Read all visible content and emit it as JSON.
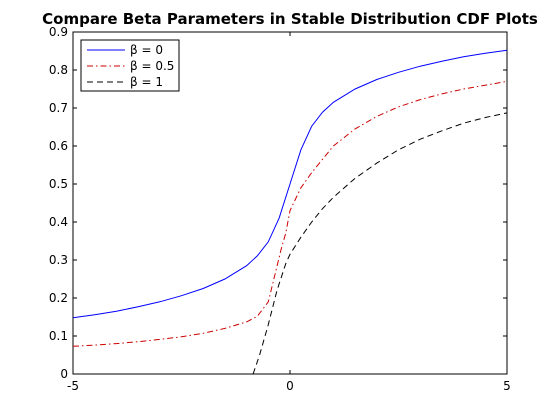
{
  "chart_data": {
    "type": "line",
    "title": "Compare Beta Parameters in Stable Distribution CDF Plots",
    "xlabel": "",
    "ylabel": "",
    "xlim": [
      -5,
      5
    ],
    "ylim": [
      0,
      0.9
    ],
    "x_ticks": [
      -5,
      0,
      5
    ],
    "y_ticks": [
      0,
      0.1,
      0.2,
      0.3,
      0.4,
      0.5,
      0.6,
      0.7,
      0.8,
      0.9
    ],
    "grid": false,
    "legend_position": "top-left",
    "series": [
      {
        "name": "β = 0",
        "color": "#0000ff",
        "dash": "solid",
        "points": [
          [
            -5,
            0.148
          ],
          [
            -4.5,
            0.156
          ],
          [
            -4,
            0.165
          ],
          [
            -3.5,
            0.177
          ],
          [
            -3,
            0.19
          ],
          [
            -2.5,
            0.206
          ],
          [
            -2,
            0.225
          ],
          [
            -1.5,
            0.25
          ],
          [
            -1,
            0.285
          ],
          [
            -0.75,
            0.311
          ],
          [
            -0.5,
            0.348
          ],
          [
            -0.25,
            0.41
          ],
          [
            0,
            0.5
          ],
          [
            0.25,
            0.59
          ],
          [
            0.5,
            0.652
          ],
          [
            0.75,
            0.689
          ],
          [
            1,
            0.715
          ],
          [
            1.5,
            0.75
          ],
          [
            2,
            0.775
          ],
          [
            2.5,
            0.794
          ],
          [
            3,
            0.81
          ],
          [
            3.5,
            0.823
          ],
          [
            4,
            0.835
          ],
          [
            4.5,
            0.844
          ],
          [
            5,
            0.852
          ]
        ]
      },
      {
        "name": "β = 0.5",
        "color": "#cc0000",
        "dash": "dashdot",
        "points": [
          [
            -5,
            0.073
          ],
          [
            -4.5,
            0.076
          ],
          [
            -4,
            0.08
          ],
          [
            -3.5,
            0.085
          ],
          [
            -3,
            0.091
          ],
          [
            -2.5,
            0.098
          ],
          [
            -2,
            0.107
          ],
          [
            -1.5,
            0.12
          ],
          [
            -1,
            0.137
          ],
          [
            -0.75,
            0.152
          ],
          [
            -0.5,
            0.19
          ],
          [
            -0.35,
            0.26
          ],
          [
            -0.2,
            0.33
          ],
          [
            -0.1,
            0.37
          ],
          [
            0,
            0.43
          ],
          [
            0.25,
            0.49
          ],
          [
            0.5,
            0.53
          ],
          [
            0.75,
            0.565
          ],
          [
            1,
            0.6
          ],
          [
            1.5,
            0.645
          ],
          [
            2,
            0.678
          ],
          [
            2.5,
            0.703
          ],
          [
            3,
            0.722
          ],
          [
            3.5,
            0.737
          ],
          [
            4,
            0.75
          ],
          [
            4.5,
            0.76
          ],
          [
            5,
            0.77
          ]
        ]
      },
      {
        "name": "β = 1",
        "color": "#000000",
        "dash": "dashed",
        "points": [
          [
            -0.85,
            0
          ],
          [
            -0.7,
            0.05
          ],
          [
            -0.5,
            0.13
          ],
          [
            -0.3,
            0.22
          ],
          [
            -0.1,
            0.29
          ],
          [
            0,
            0.315
          ],
          [
            0.25,
            0.36
          ],
          [
            0.5,
            0.4
          ],
          [
            0.75,
            0.435
          ],
          [
            1,
            0.465
          ],
          [
            1.5,
            0.515
          ],
          [
            2,
            0.555
          ],
          [
            2.5,
            0.59
          ],
          [
            3,
            0.618
          ],
          [
            3.5,
            0.64
          ],
          [
            4,
            0.66
          ],
          [
            4.5,
            0.675
          ],
          [
            5,
            0.687
          ]
        ]
      }
    ]
  }
}
